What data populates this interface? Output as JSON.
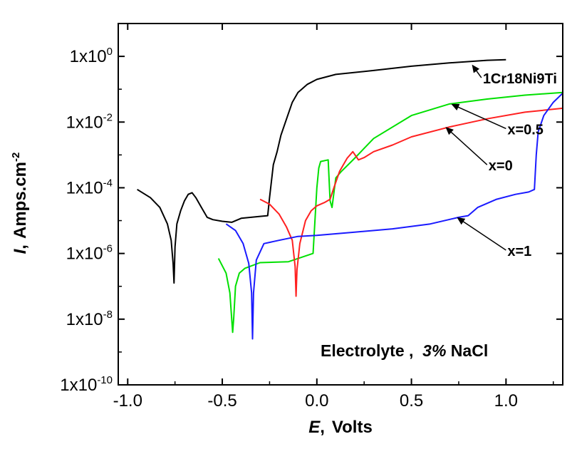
{
  "chart_data": {
    "type": "line",
    "xlabel": {
      "symbol": "E",
      "sep": ",",
      "unit": "Volts"
    },
    "ylabel": {
      "symbol": "I",
      "sep": ",",
      "unit": "Amps.cm",
      "unit_exp": "-2"
    },
    "x_scale": "linear",
    "y_scale": "log",
    "xlim": [
      -1.05,
      1.3
    ],
    "ylim_exp": [
      -10,
      1
    ],
    "x_ticks": [
      {
        "value": -1.0,
        "label": "-1.0"
      },
      {
        "value": -0.5,
        "label": "-0.5"
      },
      {
        "value": 0.0,
        "label": "0.0"
      },
      {
        "value": 0.5,
        "label": "0.5"
      },
      {
        "value": 1.0,
        "label": "1.0"
      }
    ],
    "y_ticks": [
      {
        "exp": -10,
        "base": "1x10",
        "sup": "-10"
      },
      {
        "exp": -8,
        "base": "1x10",
        "sup": "-8"
      },
      {
        "exp": -6,
        "base": "1x10",
        "sup": "-6"
      },
      {
        "exp": -4,
        "base": "1x10",
        "sup": "-4"
      },
      {
        "exp": -2,
        "base": "1x10",
        "sup": "-2"
      },
      {
        "exp": 0,
        "base": "1x10",
        "sup": "0"
      }
    ],
    "grid": false,
    "series": [
      {
        "name": "1Cr18Ni9Ti",
        "color": "#000000",
        "points": [
          [
            -0.95,
            -4.05
          ],
          [
            -0.88,
            -4.3
          ],
          [
            -0.83,
            -4.6
          ],
          [
            -0.79,
            -5.1
          ],
          [
            -0.77,
            -5.6
          ],
          [
            -0.76,
            -6.3
          ],
          [
            -0.755,
            -6.9
          ],
          [
            -0.75,
            -5.8
          ],
          [
            -0.74,
            -5.1
          ],
          [
            -0.72,
            -4.7
          ],
          [
            -0.7,
            -4.4
          ],
          [
            -0.68,
            -4.2
          ],
          [
            -0.66,
            -4.15
          ],
          [
            -0.64,
            -4.3
          ],
          [
            -0.61,
            -4.6
          ],
          [
            -0.58,
            -4.9
          ],
          [
            -0.55,
            -4.97
          ],
          [
            -0.5,
            -5.02
          ],
          [
            -0.45,
            -5.05
          ],
          [
            -0.4,
            -4.93
          ],
          [
            -0.3,
            -4.87
          ],
          [
            -0.26,
            -4.85
          ],
          [
            -0.25,
            -4.3
          ],
          [
            -0.23,
            -3.3
          ],
          [
            -0.21,
            -2.9
          ],
          [
            -0.19,
            -2.4
          ],
          [
            -0.16,
            -1.9
          ],
          [
            -0.13,
            -1.4
          ],
          [
            -0.1,
            -1.1
          ],
          [
            -0.05,
            -0.85
          ],
          [
            0.0,
            -0.7
          ],
          [
            0.1,
            -0.55
          ],
          [
            0.3,
            -0.43
          ],
          [
            0.5,
            -0.3
          ],
          [
            0.7,
            -0.2
          ],
          [
            0.9,
            -0.12
          ],
          [
            1.0,
            -0.1
          ]
        ]
      },
      {
        "name": "x=0.5",
        "color": "#00e000",
        "points": [
          [
            -0.52,
            -6.15
          ],
          [
            -0.48,
            -6.6
          ],
          [
            -0.46,
            -7.2
          ],
          [
            -0.445,
            -8.4
          ],
          [
            -0.44,
            -8.0
          ],
          [
            -0.43,
            -7.0
          ],
          [
            -0.41,
            -6.6
          ],
          [
            -0.38,
            -6.45
          ],
          [
            -0.3,
            -6.28
          ],
          [
            -0.15,
            -6.25
          ],
          [
            -0.02,
            -6.0
          ],
          [
            -0.015,
            -5.5
          ],
          [
            0.0,
            -4.0
          ],
          [
            0.01,
            -3.4
          ],
          [
            0.02,
            -3.2
          ],
          [
            0.06,
            -3.15
          ],
          [
            0.07,
            -4.4
          ],
          [
            0.08,
            -4.6
          ],
          [
            0.1,
            -3.7
          ],
          [
            0.13,
            -3.5
          ],
          [
            0.2,
            -3.1
          ],
          [
            0.3,
            -2.5
          ],
          [
            0.5,
            -1.8
          ],
          [
            0.7,
            -1.45
          ],
          [
            0.9,
            -1.3
          ],
          [
            1.1,
            -1.18
          ],
          [
            1.3,
            -1.1
          ]
        ]
      },
      {
        "name": "x=0",
        "color": "#ff2020",
        "points": [
          [
            -0.3,
            -4.35
          ],
          [
            -0.25,
            -4.5
          ],
          [
            -0.2,
            -4.8
          ],
          [
            -0.16,
            -5.2
          ],
          [
            -0.13,
            -5.6
          ],
          [
            -0.115,
            -6.4
          ],
          [
            -0.11,
            -7.3
          ],
          [
            -0.105,
            -6.5
          ],
          [
            -0.09,
            -5.7
          ],
          [
            -0.06,
            -5.0
          ],
          [
            -0.03,
            -4.7
          ],
          [
            0.0,
            -4.55
          ],
          [
            0.04,
            -4.45
          ],
          [
            0.07,
            -4.35
          ],
          [
            0.09,
            -4.0
          ],
          [
            0.12,
            -3.5
          ],
          [
            0.16,
            -3.1
          ],
          [
            0.19,
            -2.9
          ],
          [
            0.22,
            -3.15
          ],
          [
            0.25,
            -3.08
          ],
          [
            0.3,
            -2.9
          ],
          [
            0.4,
            -2.7
          ],
          [
            0.5,
            -2.45
          ],
          [
            0.7,
            -2.15
          ],
          [
            0.9,
            -1.9
          ],
          [
            1.1,
            -1.7
          ],
          [
            1.3,
            -1.58
          ]
        ]
      },
      {
        "name": "x=1",
        "color": "#1a1aff",
        "points": [
          [
            -0.48,
            -5.1
          ],
          [
            -0.43,
            -5.3
          ],
          [
            -0.39,
            -5.7
          ],
          [
            -0.36,
            -6.3
          ],
          [
            -0.345,
            -7.2
          ],
          [
            -0.34,
            -8.6
          ],
          [
            -0.335,
            -7.2
          ],
          [
            -0.32,
            -6.2
          ],
          [
            -0.28,
            -5.7
          ],
          [
            -0.2,
            -5.6
          ],
          [
            -0.1,
            -5.48
          ],
          [
            0.0,
            -5.45
          ],
          [
            0.2,
            -5.35
          ],
          [
            0.4,
            -5.25
          ],
          [
            0.6,
            -5.1
          ],
          [
            0.75,
            -4.9
          ],
          [
            0.8,
            -4.85
          ],
          [
            0.85,
            -4.6
          ],
          [
            0.95,
            -4.35
          ],
          [
            1.05,
            -4.2
          ],
          [
            1.12,
            -4.13
          ],
          [
            1.15,
            -4.05
          ],
          [
            1.16,
            -3.0
          ],
          [
            1.17,
            -2.3
          ],
          [
            1.2,
            -1.8
          ],
          [
            1.25,
            -1.4
          ],
          [
            1.3,
            -1.12
          ]
        ]
      }
    ],
    "annotations": [
      {
        "text": "1Cr18Ni9Ti",
        "series": "1Cr18Ni9Ti",
        "target": [
          0.82,
          -0.25
        ],
        "label_at": [
          0.87,
          -0.65
        ]
      },
      {
        "text": "x=0.5",
        "series": "x=0.5",
        "target": [
          0.71,
          -1.45
        ],
        "label_at": [
          1.0,
          -2.2
        ]
      },
      {
        "text": "x=0",
        "series": "x=0",
        "target": [
          0.68,
          -2.15
        ],
        "label_at": [
          0.9,
          -3.3
        ]
      },
      {
        "text": "x=1",
        "series": "x=1",
        "target": [
          0.74,
          -4.9
        ],
        "label_at": [
          1.0,
          -5.9
        ]
      }
    ],
    "inset_text": {
      "main": "Electrolyte ,  ",
      "italic": "3%",
      "after": " NaCl"
    }
  }
}
